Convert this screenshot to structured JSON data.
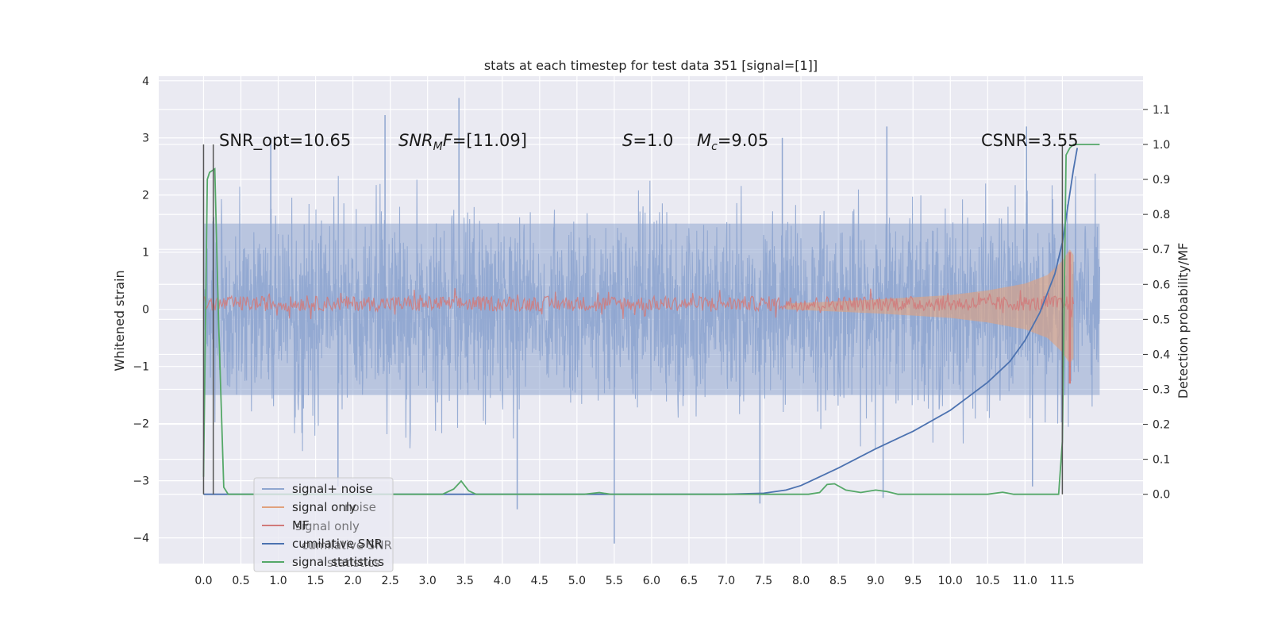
{
  "chart_data": {
    "type": "line",
    "title": "stats at each timestep for test data 351 [signal=[1]]",
    "ylabel_left": "Whitened strain",
    "ylabel_right": "Detection probability/MF",
    "xlim": [
      -0.6,
      12.58
    ],
    "ylim_left": [
      -4.45,
      4.08
    ],
    "ylim_right": [
      -0.198,
      1.195
    ],
    "x_ticks": [
      0.0,
      0.5,
      1.0,
      1.5,
      2.0,
      2.5,
      3.0,
      3.5,
      4.0,
      4.5,
      5.0,
      5.5,
      6.0,
      6.5,
      7.0,
      7.5,
      8.0,
      8.5,
      9.0,
      9.5,
      10.0,
      10.5,
      11.0,
      11.5
    ],
    "x_tick_labels": [
      "0.0",
      "0.5",
      "1.0",
      "1.5",
      "2.0",
      "2.5",
      "3.0",
      "3.5",
      "4.0",
      "4.5",
      "5.0",
      "5.5",
      "6.0",
      "6.5",
      "7.0",
      "7.5",
      "8.0",
      "8.5",
      "9.0",
      "9.5",
      "10.0",
      "10.5",
      "11.0",
      "11.5"
    ],
    "y_left_ticks": [
      -4,
      -3,
      -2,
      -1,
      0,
      1,
      2,
      3,
      4
    ],
    "y_left_tick_labels": [
      "−4",
      "−3",
      "−2",
      "−1",
      "0",
      "1",
      "2",
      "3",
      "4"
    ],
    "y_right_ticks": [
      0.0,
      0.1,
      0.2,
      0.3,
      0.4,
      0.5,
      0.6,
      0.7,
      0.8,
      0.9,
      1.0,
      1.1
    ],
    "y_right_tick_labels": [
      "0.0",
      "0.1",
      "0.2",
      "0.3",
      "0.4",
      "0.5",
      "0.6",
      "0.7",
      "0.8",
      "0.9",
      "1.0",
      "1.1"
    ],
    "grid": true,
    "legend_position": "lower-left",
    "annotations": {
      "snr_opt": "SNR_opt=10.65",
      "snr_mf_italic": "SNR",
      "snr_mf_sub": "M",
      "snr_mf_italic2": "F",
      "snr_mf_value": "=[11.09]",
      "s_italic": "S",
      "s_value": "=1.0",
      "mc_italic": "M",
      "mc_sub": "c",
      "mc_value": "=9.05",
      "csnr": "CSNR=3.55"
    },
    "vertical_markers_x": [
      0.0,
      0.13,
      11.5
    ],
    "series": [
      {
        "name": "signal+ noise",
        "axis": "left",
        "color": "#8fa6d0",
        "style": "dense noise band",
        "envelope": {
          "x": [
            0.0,
            12.0
          ],
          "y_max_typical": 2.3,
          "y_min_typical": -2.3,
          "max": 3.7,
          "min": -4.1
        },
        "spikes": [
          {
            "x": 3.42,
            "y": 3.7
          },
          {
            "x": 2.43,
            "y": 3.4
          },
          {
            "x": 9.15,
            "y": 3.2
          },
          {
            "x": 11.02,
            "y": 3.2
          },
          {
            "x": 5.5,
            "y": -4.1
          },
          {
            "x": 4.2,
            "y": -3.5
          },
          {
            "x": 7.45,
            "y": -3.4
          },
          {
            "x": 9.1,
            "y": -3.3
          },
          {
            "x": 11.1,
            "y": -3.1
          },
          {
            "x": 1.8,
            "y": -3.1
          },
          {
            "x": 0.9,
            "y": 3.0
          },
          {
            "x": 7.75,
            "y": 3.0
          }
        ]
      },
      {
        "name": "signal only",
        "axis": "left",
        "color": "#e1a17d",
        "style": "chirp envelope",
        "x": [
          7.8,
          9.0,
          10.0,
          10.5,
          11.0,
          11.3,
          11.5,
          11.6,
          11.65
        ],
        "amplitude": [
          0.05,
          0.12,
          0.2,
          0.28,
          0.4,
          0.55,
          0.8,
          1.0,
          0.9
        ]
      },
      {
        "name": "MF",
        "axis": "left",
        "color": "#d17a7a",
        "style": "narrow band",
        "center": 0.1,
        "half_width": 0.13,
        "end_x": 11.65,
        "end_spike": {
          "x": 11.6,
          "y_max": 1.0,
          "y_min": -1.3
        }
      },
      {
        "name": "cumilative SNR",
        "axis": "right",
        "color": "#4c72b0",
        "x": [
          0.0,
          7.0,
          7.5,
          7.8,
          8.0,
          8.5,
          9.0,
          9.5,
          10.0,
          10.5,
          10.8,
          11.0,
          11.2,
          11.4,
          11.5,
          11.6,
          11.65,
          11.7
        ],
        "y": [
          0.0,
          0.0,
          0.003,
          0.012,
          0.025,
          0.075,
          0.13,
          0.18,
          0.24,
          0.32,
          0.38,
          0.44,
          0.52,
          0.63,
          0.72,
          0.86,
          0.93,
          0.99
        ]
      },
      {
        "name": "signal statistics",
        "axis": "right",
        "color": "#55a868",
        "x": [
          0.0,
          0.05,
          0.08,
          0.15,
          0.2,
          0.27,
          0.33,
          0.5,
          3.2,
          3.35,
          3.45,
          3.55,
          3.65,
          5.1,
          5.3,
          5.45,
          8.1,
          8.25,
          8.35,
          8.45,
          8.6,
          8.8,
          9.0,
          9.15,
          9.3,
          10.5,
          10.7,
          10.85,
          11.45,
          11.5,
          11.55,
          11.6,
          11.65,
          11.7,
          11.8,
          12.0
        ],
        "y": [
          0.05,
          0.9,
          0.92,
          0.93,
          0.5,
          0.02,
          0.0,
          0.0,
          0.0,
          0.015,
          0.038,
          0.01,
          0.0,
          0.0,
          0.005,
          0.0,
          0.0,
          0.005,
          0.028,
          0.03,
          0.012,
          0.005,
          0.012,
          0.008,
          0.0,
          0.0,
          0.006,
          0.0,
          0.0,
          0.15,
          0.97,
          0.99,
          1.0,
          1.0,
          1.0,
          1.0
        ]
      }
    ],
    "legend": [
      "signal+ noise",
      "signal only",
      "MF",
      "cumilative SNR",
      "signal statistics"
    ],
    "legend_ghost_text": [
      "noise",
      "signal only",
      "statistics",
      "cumilative SNR"
    ]
  }
}
